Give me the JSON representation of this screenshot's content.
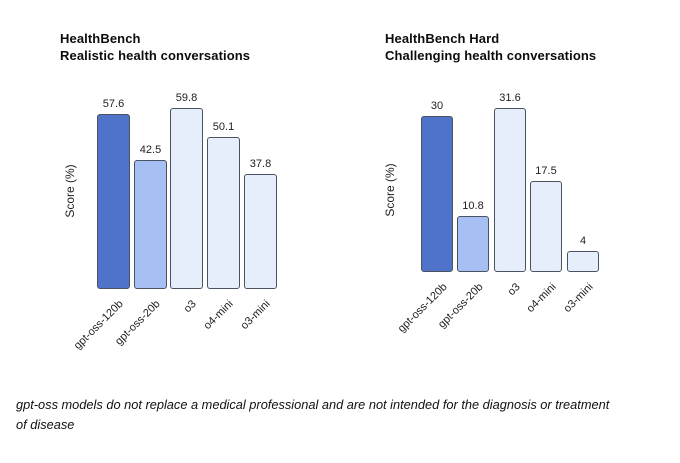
{
  "chart_data": [
    {
      "type": "bar",
      "title": "HealthBench",
      "subtitle": "Realistic health conversations",
      "xlabel": "",
      "ylabel": "Score (%)",
      "categories": [
        "gpt-oss-120b",
        "gpt-oss-20b",
        "o3",
        "o4-mini",
        "o3-mini"
      ],
      "values": [
        57.6,
        42.5,
        59.8,
        50.1,
        37.8
      ],
      "value_labels": [
        "57.6",
        "42.5",
        "59.8",
        "50.1",
        "37.8"
      ],
      "ylim": [
        0,
        67
      ],
      "grid": false,
      "legend": "none",
      "axis_lines": "none",
      "tick_rotation_deg": 45
    },
    {
      "type": "bar",
      "title": "HealthBench Hard",
      "subtitle": "Challenging health conversations",
      "xlabel": "",
      "ylabel": "Score (%)",
      "categories": [
        "gpt-oss-120b",
        "gpt-oss-20b",
        "o3",
        "o4-mini",
        "o3-mini"
      ],
      "values": [
        30,
        10.8,
        31.6,
        17.5,
        4
      ],
      "value_labels": [
        "30",
        "10.8",
        "31.6",
        "17.5",
        "4"
      ],
      "ylim": [
        0,
        35
      ],
      "grid": false,
      "legend": "none",
      "axis_lines": "none",
      "tick_rotation_deg": 45
    }
  ],
  "colors": {
    "bar_primary": "#4e73c8",
    "bar_secondary": "#a6c0f4",
    "bar_tertiary": "#e6eefb",
    "bar_border": "#4a5362",
    "background": "#ffffff",
    "text": "#111111"
  },
  "footer": {
    "lines": [
      "gpt-oss models do not replace a medical professional and are not intended for the diagnosis or treatment",
      "of disease"
    ]
  }
}
